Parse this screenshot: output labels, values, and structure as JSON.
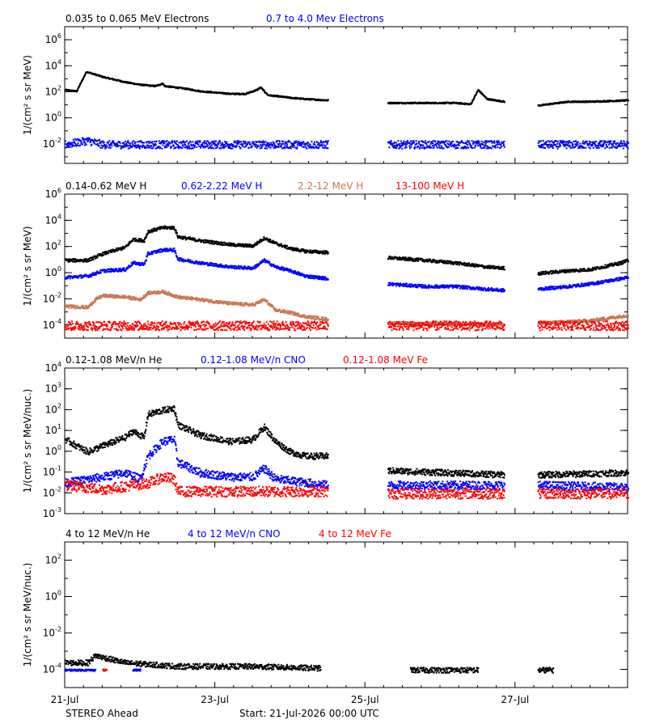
{
  "footer": {
    "spacecraft": "STEREO Ahead",
    "start": "Start: 21-Jul-2026 00:00 UTC"
  },
  "x_axis": {
    "range_days": [
      0,
      7.5
    ],
    "ticks": [
      {
        "day": 0,
        "label": "21-Jul"
      },
      {
        "day": 2,
        "label": "23-Jul"
      },
      {
        "day": 4,
        "label": "25-Jul"
      },
      {
        "day": 6,
        "label": "27-Jul"
      }
    ]
  },
  "chart_data": [
    {
      "type": "scatter",
      "ylabel": "1/(cm² s sr MeV)",
      "ylim_log10": [
        -3.5,
        7
      ],
      "yticks": [
        -2,
        0,
        2,
        4,
        6
      ],
      "legend": [
        {
          "text": "0.035 to 0.065 MeV Electrons",
          "color": "#000000"
        },
        {
          "text": "0.7 to 4.0 Mev Electrons",
          "color": "#0000ff"
        }
      ],
      "series": [
        {
          "name": "0.035 to 0.065 MeV Electrons",
          "color": "#000000",
          "spread": 0.05,
          "segments": [
            [
              [
                0,
                2.2
              ],
              [
                0.15,
                2.1
              ],
              [
                0.28,
                3.6
              ],
              [
                0.5,
                3.2
              ],
              [
                0.8,
                2.8
              ],
              [
                1.0,
                2.6
              ],
              [
                1.2,
                2.5
              ],
              [
                1.3,
                2.7
              ],
              [
                1.32,
                2.5
              ],
              [
                1.6,
                2.3
              ],
              [
                1.8,
                2.1
              ],
              [
                2.0,
                2.0
              ],
              [
                2.2,
                1.9
              ],
              [
                2.4,
                1.9
              ],
              [
                2.55,
                2.2
              ],
              [
                2.6,
                2.4
              ],
              [
                2.7,
                1.8
              ],
              [
                3.0,
                1.6
              ],
              [
                3.2,
                1.5
              ],
              [
                3.5,
                1.4
              ]
            ],
            [
              [
                4.3,
                1.2
              ],
              [
                4.8,
                1.2
              ],
              [
                5.2,
                1.2
              ],
              [
                5.4,
                1.1
              ],
              [
                5.5,
                2.2
              ],
              [
                5.62,
                1.5
              ],
              [
                5.85,
                1.3
              ]
            ],
            [
              [
                6.3,
                1.0
              ],
              [
                6.7,
                1.3
              ],
              [
                7.0,
                1.3
              ],
              [
                7.5,
                1.4
              ]
            ]
          ]
        },
        {
          "name": "0.7 to 4.0 Mev Electrons",
          "color": "#0000ff",
          "spread": 0.3,
          "segments": [
            [
              [
                0,
                -2.0
              ],
              [
                0.3,
                -1.7
              ],
              [
                0.5,
                -2.0
              ],
              [
                3.5,
                -2.0
              ]
            ],
            [
              [
                4.3,
                -2.0
              ],
              [
                5.85,
                -2.0
              ]
            ],
            [
              [
                6.3,
                -2.0
              ],
              [
                7.5,
                -2.0
              ]
            ]
          ]
        }
      ]
    },
    {
      "type": "scatter",
      "ylabel": "1/(cm² s sr MeV)",
      "ylim_log10": [
        -5,
        6
      ],
      "yticks": [
        -4,
        -2,
        0,
        2,
        4,
        6
      ],
      "legend": [
        {
          "text": "0.14-0.62 MeV H",
          "color": "#000000"
        },
        {
          "text": "0.62-2.22 MeV H",
          "color": "#0000ff"
        },
        {
          "text": "2.2-12 MeV H",
          "color": "#c87850"
        },
        {
          "text": "13-100 MeV H",
          "color": "#ff0000"
        }
      ],
      "series": [
        {
          "name": "0.14-0.62 MeV H",
          "color": "#000000",
          "spread": 0.12,
          "segments": [
            [
              [
                0,
                1.0
              ],
              [
                0.3,
                1.0
              ],
              [
                0.5,
                1.5
              ],
              [
                0.8,
                2.0
              ],
              [
                0.9,
                2.6
              ],
              [
                1.05,
                2.5
              ],
              [
                1.1,
                3.2
              ],
              [
                1.3,
                3.5
              ],
              [
                1.45,
                3.5
              ],
              [
                1.5,
                2.8
              ],
              [
                1.8,
                2.5
              ],
              [
                2.2,
                2.2
              ],
              [
                2.5,
                2.1
              ],
              [
                2.65,
                2.7
              ],
              [
                2.8,
                2.3
              ],
              [
                3.0,
                1.9
              ],
              [
                3.2,
                1.7
              ],
              [
                3.5,
                1.6
              ]
            ],
            [
              [
                4.3,
                1.2
              ],
              [
                4.8,
                1.0
              ],
              [
                5.2,
                0.8
              ],
              [
                5.6,
                0.5
              ],
              [
                5.85,
                0.4
              ]
            ],
            [
              [
                6.3,
                0.0
              ],
              [
                6.7,
                0.2
              ],
              [
                7.0,
                0.3
              ],
              [
                7.4,
                0.8
              ],
              [
                7.5,
                1.0
              ]
            ]
          ]
        },
        {
          "name": "0.62-2.22 MeV H",
          "color": "#0000ff",
          "spread": 0.12,
          "segments": [
            [
              [
                0,
                -0.3
              ],
              [
                0.3,
                -0.2
              ],
              [
                0.5,
                0.2
              ],
              [
                0.8,
                0.3
              ],
              [
                0.9,
                0.8
              ],
              [
                1.05,
                0.7
              ],
              [
                1.1,
                1.5
              ],
              [
                1.3,
                1.8
              ],
              [
                1.45,
                1.8
              ],
              [
                1.5,
                1.1
              ],
              [
                1.8,
                0.8
              ],
              [
                2.2,
                0.5
              ],
              [
                2.5,
                0.4
              ],
              [
                2.65,
                1.0
              ],
              [
                2.8,
                0.5
              ],
              [
                3.0,
                0.2
              ],
              [
                3.2,
                -0.2
              ],
              [
                3.5,
                -0.4
              ]
            ],
            [
              [
                4.3,
                -0.8
              ],
              [
                4.8,
                -1.0
              ],
              [
                5.2,
                -1.0
              ],
              [
                5.6,
                -1.2
              ],
              [
                5.85,
                -1.3
              ]
            ],
            [
              [
                6.3,
                -1.2
              ],
              [
                6.7,
                -1.0
              ],
              [
                7.0,
                -0.8
              ],
              [
                7.4,
                -0.4
              ],
              [
                7.5,
                -0.3
              ]
            ]
          ]
        },
        {
          "name": "2.2-12 MeV H",
          "color": "#c87850",
          "spread": 0.12,
          "segments": [
            [
              [
                0,
                -2.5
              ],
              [
                0.3,
                -2.6
              ],
              [
                0.4,
                -2.0
              ],
              [
                0.5,
                -1.7
              ],
              [
                0.8,
                -1.8
              ],
              [
                1.0,
                -2.0
              ],
              [
                1.1,
                -1.5
              ],
              [
                1.3,
                -1.4
              ],
              [
                1.5,
                -1.8
              ],
              [
                1.8,
                -2.0
              ],
              [
                2.2,
                -2.3
              ],
              [
                2.5,
                -2.4
              ],
              [
                2.65,
                -2.0
              ],
              [
                2.8,
                -2.8
              ],
              [
                3.0,
                -3.0
              ],
              [
                3.2,
                -3.3
              ],
              [
                3.5,
                -3.5
              ]
            ],
            [
              [
                4.3,
                -3.8
              ],
              [
                5.85,
                -3.9
              ]
            ],
            [
              [
                6.3,
                -3.8
              ],
              [
                7.0,
                -3.6
              ],
              [
                7.5,
                -3.2
              ]
            ]
          ]
        },
        {
          "name": "13-100 MeV H",
          "color": "#ff0000",
          "spread": 0.35,
          "segments": [
            [
              [
                0,
                -4.0
              ],
              [
                3.5,
                -4.0
              ]
            ],
            [
              [
                4.3,
                -4.0
              ],
              [
                5.85,
                -4.0
              ]
            ],
            [
              [
                6.3,
                -4.0
              ],
              [
                7.5,
                -4.0
              ]
            ]
          ]
        }
      ]
    },
    {
      "type": "scatter",
      "ylabel": "1/(cm² s sr MeV/nuc.)",
      "ylim_log10": [
        -3,
        4
      ],
      "yticks": [
        -3,
        -2,
        -1,
        0,
        1,
        2,
        3,
        4
      ],
      "legend": [
        {
          "text": "0.12-1.08 MeV/n He",
          "color": "#000000"
        },
        {
          "text": "0.12-1.08 MeV/n CNO",
          "color": "#0000ff"
        },
        {
          "text": "0.12-1.08 MeV Fe",
          "color": "#ff0000"
        }
      ],
      "series": [
        {
          "name": "0.12-1.08 MeV/n He",
          "color": "#000000",
          "spread": 0.15,
          "segments": [
            [
              [
                0,
                0.6
              ],
              [
                0.3,
                0.0
              ],
              [
                0.5,
                0.3
              ],
              [
                0.8,
                0.7
              ],
              [
                0.9,
                1.0
              ],
              [
                1.05,
                0.7
              ],
              [
                1.1,
                1.8
              ],
              [
                1.3,
                2.0
              ],
              [
                1.45,
                2.1
              ],
              [
                1.5,
                1.3
              ],
              [
                1.8,
                0.8
              ],
              [
                2.2,
                0.5
              ],
              [
                2.5,
                0.6
              ],
              [
                2.65,
                1.2
              ],
              [
                2.8,
                0.5
              ],
              [
                3.0,
                0.0
              ],
              [
                3.2,
                -0.2
              ],
              [
                3.5,
                -0.2
              ]
            ],
            [
              [
                4.3,
                -0.9
              ],
              [
                5.85,
                -1.1
              ]
            ],
            [
              [
                6.3,
                -1.1
              ],
              [
                7.5,
                -1.0
              ]
            ]
          ]
        },
        {
          "name": "0.12-1.08 MeV/n CNO",
          "color": "#0000ff",
          "spread": 0.2,
          "segments": [
            [
              [
                0,
                -1.5
              ],
              [
                0.5,
                -1.2
              ],
              [
                0.8,
                -1.0
              ],
              [
                1.0,
                -1.3
              ],
              [
                1.1,
                -0.2
              ],
              [
                1.3,
                0.5
              ],
              [
                1.45,
                0.6
              ],
              [
                1.5,
                -0.5
              ],
              [
                1.8,
                -1.0
              ],
              [
                2.2,
                -1.2
              ],
              [
                2.5,
                -1.2
              ],
              [
                2.65,
                -0.8
              ],
              [
                2.8,
                -1.3
              ],
              [
                3.5,
                -1.6
              ]
            ],
            [
              [
                4.3,
                -1.6
              ],
              [
                5.85,
                -1.6
              ]
            ],
            [
              [
                6.3,
                -1.6
              ],
              [
                7.5,
                -1.7
              ]
            ]
          ]
        },
        {
          "name": "0.12-1.08 MeV Fe",
          "color": "#ff0000",
          "spread": 0.25,
          "segments": [
            [
              [
                0,
                -1.6
              ],
              [
                0.5,
                -1.8
              ],
              [
                1.1,
                -1.5
              ],
              [
                1.3,
                -1.2
              ],
              [
                1.45,
                -1.3
              ],
              [
                1.5,
                -1.9
              ],
              [
                3.5,
                -1.9
              ]
            ],
            [
              [
                4.3,
                -2.0
              ],
              [
                5.85,
                -2.0
              ]
            ],
            [
              [
                6.3,
                -2.0
              ],
              [
                7.5,
                -2.0
              ]
            ]
          ]
        }
      ]
    },
    {
      "type": "scatter",
      "ylabel": "1/(cm² s sr MeV/nuc.)",
      "ylim_log10": [
        -5,
        3
      ],
      "yticks": [
        -4,
        -2,
        0,
        2
      ],
      "legend": [
        {
          "text": "4 to 12 MeV/n He",
          "color": "#000000"
        },
        {
          "text": "4 to 12 MeV/n CNO",
          "color": "#0000ff"
        },
        {
          "text": "4 to 12 MeV Fe",
          "color": "#ff0000"
        }
      ],
      "series": [
        {
          "name": "4 to 12 MeV/n He",
          "color": "#000000",
          "spread": 0.15,
          "segments": [
            [
              [
                0,
                -3.6
              ],
              [
                0.3,
                -3.6
              ],
              [
                0.4,
                -3.2
              ],
              [
                0.6,
                -3.4
              ],
              [
                0.8,
                -3.6
              ],
              [
                1.5,
                -3.8
              ],
              [
                2.5,
                -3.8
              ],
              [
                3.4,
                -3.9
              ]
            ],
            [
              [
                4.6,
                -4.0
              ],
              [
                5.0,
                -4.0
              ],
              [
                5.5,
                -4.0
              ]
            ],
            [
              [
                6.3,
                -4.0
              ],
              [
                6.5,
                -4.0
              ]
            ]
          ]
        },
        {
          "name": "4 to 12 MeV/n CNO",
          "color": "#0000ff",
          "spread": 0.05,
          "segments": [
            [
              [
                0,
                -4.0
              ],
              [
                0.4,
                -4.0
              ]
            ],
            [
              [
                0.9,
                -4.0
              ],
              [
                1.0,
                -4.0
              ]
            ]
          ]
        },
        {
          "name": "4 to 12 MeV Fe",
          "color": "#ff0000",
          "spread": 0.05,
          "segments": [
            [
              [
                0.5,
                -4.0
              ],
              [
                0.55,
                -4.0
              ]
            ]
          ]
        }
      ]
    }
  ]
}
